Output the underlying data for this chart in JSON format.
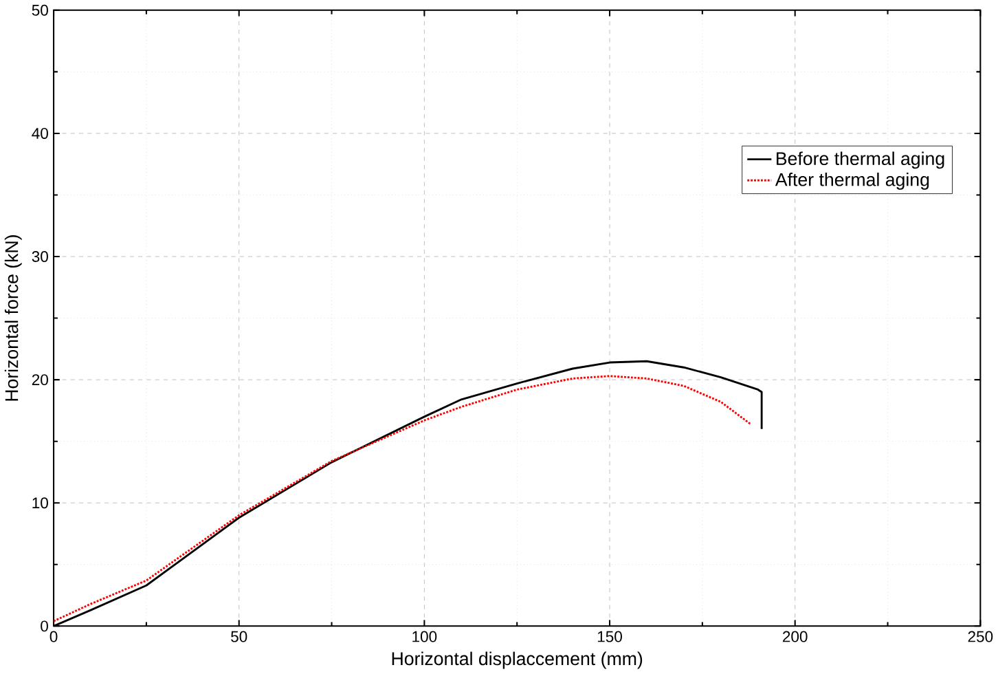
{
  "chart_data": {
    "type": "line",
    "xlabel": "Horizontal displaccement (mm)",
    "ylabel": "Horizontal force (kN)",
    "xlim": [
      0,
      250
    ],
    "ylim": [
      0,
      50
    ],
    "xticks": [
      0,
      50,
      100,
      150,
      200,
      250
    ],
    "yticks": [
      0,
      10,
      20,
      30,
      40,
      50
    ],
    "grid": true,
    "legend": "top right",
    "series": [
      {
        "name": "Before thermal aging",
        "color": "#000000",
        "line_style": "solid",
        "x": [
          0,
          10,
          25,
          50,
          75,
          100,
          110,
          125,
          140,
          150,
          160,
          170,
          180,
          190,
          191,
          191
        ],
        "values": [
          0,
          1.3,
          3.3,
          8.8,
          13.3,
          17.0,
          18.4,
          19.7,
          20.9,
          21.4,
          21.5,
          21.0,
          20.2,
          19.2,
          19.0,
          16.0
        ]
      },
      {
        "name": "After thermal aging",
        "color": "#ff0000",
        "line_style": "dotted",
        "x": [
          0,
          10,
          25,
          50,
          75,
          100,
          110,
          125,
          140,
          150,
          160,
          170,
          180,
          188
        ],
        "values": [
          0.4,
          1.8,
          3.7,
          9.0,
          13.4,
          16.7,
          17.8,
          19.2,
          20.1,
          20.3,
          20.1,
          19.5,
          18.2,
          16.4
        ]
      }
    ]
  }
}
